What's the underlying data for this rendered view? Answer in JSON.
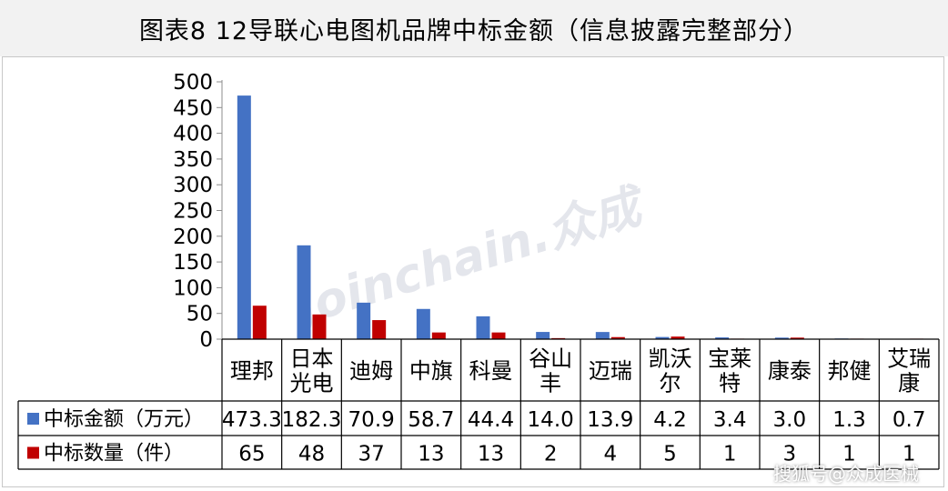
{
  "title": "图表8  12导联心电图机品牌中标金额（信息披露完整部分）",
  "watermark_text": "Joinchain.众成",
  "footer_watermark": "搜狐号@众成医械",
  "colors": {
    "amount": "#4472c4",
    "count": "#c00000",
    "title_bg": "#f2f2f2"
  },
  "chart_data": {
    "type": "bar",
    "categories": [
      [
        "理邦"
      ],
      [
        "日本",
        "光电"
      ],
      [
        "迪姆"
      ],
      [
        "中旗"
      ],
      [
        "科曼"
      ],
      [
        "谷山",
        "丰"
      ],
      [
        "迈瑞"
      ],
      [
        "凯沃",
        "尔"
      ],
      [
        "宝莱",
        "特"
      ],
      [
        "康泰"
      ],
      [
        "邦健"
      ],
      [
        "艾瑞",
        "康"
      ]
    ],
    "series": [
      {
        "name": "中标金额（万元）",
        "values": [
          473.3,
          182.3,
          70.9,
          58.7,
          44.4,
          14.0,
          13.9,
          4.2,
          3.4,
          3.0,
          1.3,
          0.7
        ],
        "labels": [
          "473.3",
          "182.3",
          "70.9",
          "58.7",
          "44.4",
          "14.0",
          "13.9",
          "4.2",
          "3.4",
          "3.0",
          "1.3",
          "0.7"
        ]
      },
      {
        "name": "中标数量（件）",
        "values": [
          65,
          48,
          37,
          13,
          13,
          2,
          4,
          5,
          1,
          3,
          1,
          1
        ],
        "labels": [
          "65",
          "48",
          "37",
          "13",
          "13",
          "2",
          "4",
          "5",
          "1",
          "3",
          "1",
          "1"
        ]
      }
    ],
    "ylim": [
      0,
      500
    ],
    "yticks": [
      "0",
      "50",
      "100",
      "150",
      "200",
      "250",
      "300",
      "350",
      "400",
      "450",
      "500"
    ],
    "grid": false,
    "legend": "data-table"
  }
}
